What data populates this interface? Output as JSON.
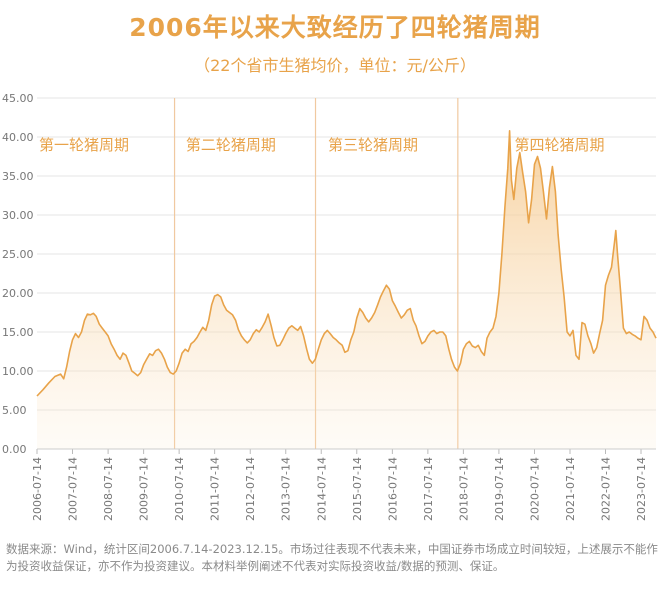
{
  "header": {
    "title": "2006年以来大致经历了四轮猪周期",
    "subtitle": "（22个省市生猪均价，单位：元/公斤）"
  },
  "footnote": "数据来源：Wind，统计区间2006.7.14-2023.12.15。市场过往表现不代表未来，中国证券市场成立时间较短，上述展示不能作为投资收益保证，亦不作为投资建议。本材料举例阐述不代表对实际投资收益/数据的预测、保证。",
  "colors": {
    "line": "#e8a34a",
    "fill": "#f5c98e",
    "divider": "#f0c9a0",
    "grid": "#e6e6e6",
    "text": "#e8a34a"
  },
  "chart_data": {
    "type": "area",
    "title": "2006年以来大致经历了四轮猪周期",
    "subtitle": "（22个省市生猪均价，单位：元/公斤）",
    "ylim": [
      0,
      45
    ],
    "y_ticks": [
      "0.00",
      "5.00",
      "10.00",
      "15.00",
      "20.00",
      "25.00",
      "30.00",
      "35.00",
      "40.00",
      "45.00"
    ],
    "x_range": [
      "2006-07-14",
      "2023-12-15"
    ],
    "x_ticks": [
      "2006-07-14",
      "2007-07-14",
      "2008-07-14",
      "2009-07-14",
      "2010-07-14",
      "2011-07-14",
      "2012-07-14",
      "2013-07-14",
      "2014-07-14",
      "2015-07-14",
      "2016-07-14",
      "2017-07-14",
      "2018-07-14",
      "2019-07-14",
      "2020-07-14",
      "2021-07-14",
      "2022-07-14",
      "2023-07-14"
    ],
    "grid": "horizontal",
    "cycle_dividers": [
      "2010-05-28",
      "2014-05-16",
      "2018-05-18"
    ],
    "cycles": [
      {
        "label": "第一轮猪周期",
        "x": "2006-07-14"
      },
      {
        "label": "第二轮猪周期",
        "x": "2010-09-01"
      },
      {
        "label": "第三轮猪周期",
        "x": "2014-09-01"
      },
      {
        "label": "第四轮猪周期",
        "x": "2019-12-01"
      }
    ],
    "series": [
      {
        "name": "",
        "points": [
          [
            "2006-07-14",
            6.8
          ],
          [
            "2006-09-14",
            7.6
          ],
          [
            "2006-11-14",
            8.5
          ],
          [
            "2007-01-14",
            9.3
          ],
          [
            "2007-03-14",
            9.6
          ],
          [
            "2007-04-14",
            9.0
          ],
          [
            "2007-05-14",
            10.5
          ],
          [
            "2007-06-14",
            12.5
          ],
          [
            "2007-07-14",
            14.0
          ],
          [
            "2007-08-14",
            14.8
          ],
          [
            "2007-09-14",
            14.3
          ],
          [
            "2007-10-14",
            15.0
          ],
          [
            "2007-11-14",
            16.5
          ],
          [
            "2007-12-14",
            17.3
          ],
          [
            "2008-01-14",
            17.2
          ],
          [
            "2008-02-14",
            17.4
          ],
          [
            "2008-03-14",
            17.0
          ],
          [
            "2008-04-14",
            16.0
          ],
          [
            "2008-05-14",
            15.5
          ],
          [
            "2008-06-14",
            15.0
          ],
          [
            "2008-07-14",
            14.5
          ],
          [
            "2008-08-14",
            13.5
          ],
          [
            "2008-09-14",
            12.8
          ],
          [
            "2008-10-14",
            12.0
          ],
          [
            "2008-11-14",
            11.5
          ],
          [
            "2008-12-14",
            12.3
          ],
          [
            "2009-01-14",
            12.0
          ],
          [
            "2009-02-14",
            11.0
          ],
          [
            "2009-03-14",
            10.0
          ],
          [
            "2009-04-14",
            9.7
          ],
          [
            "2009-05-14",
            9.4
          ],
          [
            "2009-06-14",
            9.8
          ],
          [
            "2009-07-14",
            10.8
          ],
          [
            "2009-08-14",
            11.5
          ],
          [
            "2009-09-14",
            12.2
          ],
          [
            "2009-10-14",
            12.0
          ],
          [
            "2009-11-14",
            12.6
          ],
          [
            "2009-12-14",
            12.8
          ],
          [
            "2010-01-14",
            12.3
          ],
          [
            "2010-02-14",
            11.5
          ],
          [
            "2010-03-14",
            10.5
          ],
          [
            "2010-04-14",
            9.8
          ],
          [
            "2010-05-14",
            9.6
          ],
          [
            "2010-06-14",
            10.0
          ],
          [
            "2010-07-14",
            11.0
          ],
          [
            "2010-08-14",
            12.3
          ],
          [
            "2010-09-14",
            12.8
          ],
          [
            "2010-10-14",
            12.5
          ],
          [
            "2010-11-14",
            13.5
          ],
          [
            "2010-12-14",
            13.8
          ],
          [
            "2011-01-14",
            14.3
          ],
          [
            "2011-02-14",
            15.0
          ],
          [
            "2011-03-14",
            15.6
          ],
          [
            "2011-04-14",
            15.2
          ],
          [
            "2011-05-14",
            16.5
          ],
          [
            "2011-06-14",
            18.5
          ],
          [
            "2011-07-14",
            19.6
          ],
          [
            "2011-08-14",
            19.8
          ],
          [
            "2011-09-14",
            19.5
          ],
          [
            "2011-10-14",
            18.5
          ],
          [
            "2011-11-14",
            17.8
          ],
          [
            "2011-12-14",
            17.5
          ],
          [
            "2012-01-14",
            17.2
          ],
          [
            "2012-02-14",
            16.5
          ],
          [
            "2012-03-14",
            15.3
          ],
          [
            "2012-04-14",
            14.5
          ],
          [
            "2012-05-14",
            14.0
          ],
          [
            "2012-06-14",
            13.6
          ],
          [
            "2012-07-14",
            14.0
          ],
          [
            "2012-08-14",
            14.8
          ],
          [
            "2012-09-14",
            15.3
          ],
          [
            "2012-10-14",
            15.0
          ],
          [
            "2012-11-14",
            15.6
          ],
          [
            "2012-12-14",
            16.3
          ],
          [
            "2013-01-14",
            17.3
          ],
          [
            "2013-02-14",
            15.8
          ],
          [
            "2013-03-14",
            14.3
          ],
          [
            "2013-04-14",
            13.2
          ],
          [
            "2013-05-14",
            13.3
          ],
          [
            "2013-06-14",
            14.0
          ],
          [
            "2013-07-14",
            14.8
          ],
          [
            "2013-08-14",
            15.5
          ],
          [
            "2013-09-14",
            15.8
          ],
          [
            "2013-10-14",
            15.5
          ],
          [
            "2013-11-14",
            15.2
          ],
          [
            "2013-12-14",
            15.7
          ],
          [
            "2014-01-14",
            14.5
          ],
          [
            "2014-02-14",
            12.8
          ],
          [
            "2014-03-14",
            11.5
          ],
          [
            "2014-04-14",
            11.0
          ],
          [
            "2014-05-14",
            11.5
          ],
          [
            "2014-06-14",
            12.8
          ],
          [
            "2014-07-14",
            14.0
          ],
          [
            "2014-08-14",
            14.8
          ],
          [
            "2014-09-14",
            15.2
          ],
          [
            "2014-10-14",
            14.8
          ],
          [
            "2014-11-14",
            14.3
          ],
          [
            "2014-12-14",
            14.0
          ],
          [
            "2015-01-14",
            13.6
          ],
          [
            "2015-02-14",
            13.3
          ],
          [
            "2015-03-14",
            12.4
          ],
          [
            "2015-04-14",
            12.6
          ],
          [
            "2015-05-14",
            14.0
          ],
          [
            "2015-06-14",
            15.0
          ],
          [
            "2015-07-14",
            16.8
          ],
          [
            "2015-08-14",
            18.0
          ],
          [
            "2015-09-14",
            17.5
          ],
          [
            "2015-10-14",
            16.8
          ],
          [
            "2015-11-14",
            16.3
          ],
          [
            "2015-12-14",
            16.8
          ],
          [
            "2016-01-14",
            17.5
          ],
          [
            "2016-02-14",
            18.5
          ],
          [
            "2016-03-14",
            19.5
          ],
          [
            "2016-04-14",
            20.3
          ],
          [
            "2016-05-14",
            21.0
          ],
          [
            "2016-06-14",
            20.5
          ],
          [
            "2016-07-14",
            19.0
          ],
          [
            "2016-08-14",
            18.3
          ],
          [
            "2016-09-14",
            17.5
          ],
          [
            "2016-10-14",
            16.8
          ],
          [
            "2016-11-14",
            17.2
          ],
          [
            "2016-12-14",
            17.8
          ],
          [
            "2017-01-14",
            18.0
          ],
          [
            "2017-02-14",
            16.5
          ],
          [
            "2017-03-14",
            15.8
          ],
          [
            "2017-04-14",
            14.5
          ],
          [
            "2017-05-14",
            13.5
          ],
          [
            "2017-06-14",
            13.8
          ],
          [
            "2017-07-14",
            14.5
          ],
          [
            "2017-08-14",
            15.0
          ],
          [
            "2017-09-14",
            15.2
          ],
          [
            "2017-10-14",
            14.8
          ],
          [
            "2017-11-14",
            15.0
          ],
          [
            "2017-12-14",
            15.0
          ],
          [
            "2018-01-14",
            14.5
          ],
          [
            "2018-02-14",
            12.8
          ],
          [
            "2018-03-14",
            11.5
          ],
          [
            "2018-04-14",
            10.5
          ],
          [
            "2018-05-14",
            10.0
          ],
          [
            "2018-06-14",
            11.0
          ],
          [
            "2018-07-14",
            12.8
          ],
          [
            "2018-08-14",
            13.5
          ],
          [
            "2018-09-14",
            13.8
          ],
          [
            "2018-10-14",
            13.2
          ],
          [
            "2018-11-14",
            13.0
          ],
          [
            "2018-12-14",
            13.3
          ],
          [
            "2019-01-14",
            12.5
          ],
          [
            "2019-02-14",
            12.0
          ],
          [
            "2019-03-14",
            14.2
          ],
          [
            "2019-04-14",
            15.0
          ],
          [
            "2019-05-14",
            15.5
          ],
          [
            "2019-06-14",
            17.0
          ],
          [
            "2019-07-14",
            20.0
          ],
          [
            "2019-08-14",
            25.0
          ],
          [
            "2019-09-14",
            31.0
          ],
          [
            "2019-10-14",
            36.0
          ],
          [
            "2019-11-01",
            40.8
          ],
          [
            "2019-11-20",
            34.5
          ],
          [
            "2019-12-14",
            32.0
          ],
          [
            "2020-01-14",
            36.0
          ],
          [
            "2020-02-14",
            38.0
          ],
          [
            "2020-03-14",
            35.5
          ],
          [
            "2020-04-14",
            33.0
          ],
          [
            "2020-05-14",
            29.0
          ],
          [
            "2020-06-14",
            32.0
          ],
          [
            "2020-07-14",
            36.5
          ],
          [
            "2020-08-14",
            37.5
          ],
          [
            "2020-09-14",
            36.0
          ],
          [
            "2020-10-14",
            33.0
          ],
          [
            "2020-11-14",
            29.5
          ],
          [
            "2020-12-14",
            33.5
          ],
          [
            "2021-01-14",
            36.2
          ],
          [
            "2021-02-14",
            33.0
          ],
          [
            "2021-03-14",
            27.5
          ],
          [
            "2021-04-14",
            23.0
          ],
          [
            "2021-05-14",
            19.5
          ],
          [
            "2021-06-14",
            15.0
          ],
          [
            "2021-07-14",
            14.5
          ],
          [
            "2021-08-14",
            15.2
          ],
          [
            "2021-09-14",
            12.0
          ],
          [
            "2021-10-14",
            11.5
          ],
          [
            "2021-11-14",
            16.2
          ],
          [
            "2021-12-14",
            16.0
          ],
          [
            "2022-01-14",
            14.5
          ],
          [
            "2022-02-14",
            13.5
          ],
          [
            "2022-03-14",
            12.3
          ],
          [
            "2022-04-14",
            13.0
          ],
          [
            "2022-05-14",
            14.8
          ],
          [
            "2022-06-14",
            16.5
          ],
          [
            "2022-07-14",
            21.0
          ],
          [
            "2022-08-14",
            22.3
          ],
          [
            "2022-09-14",
            23.3
          ],
          [
            "2022-10-14",
            26.5
          ],
          [
            "2022-10-28",
            28.0
          ],
          [
            "2022-11-14",
            25.0
          ],
          [
            "2022-12-14",
            20.5
          ],
          [
            "2023-01-14",
            15.5
          ],
          [
            "2023-02-14",
            14.8
          ],
          [
            "2023-03-14",
            15.0
          ],
          [
            "2023-04-14",
            14.7
          ],
          [
            "2023-05-14",
            14.5
          ],
          [
            "2023-06-14",
            14.2
          ],
          [
            "2023-07-14",
            14.0
          ],
          [
            "2023-08-14",
            17.0
          ],
          [
            "2023-09-14",
            16.5
          ],
          [
            "2023-10-14",
            15.5
          ],
          [
            "2023-11-14",
            15.0
          ],
          [
            "2023-12-15",
            14.2
          ]
        ]
      }
    ]
  }
}
